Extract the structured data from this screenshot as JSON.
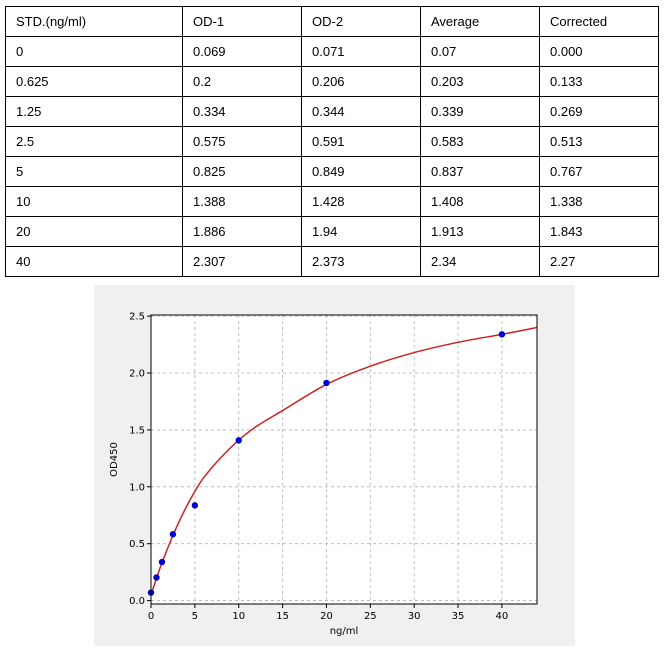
{
  "table": {
    "headers": [
      "STD.(ng/ml)",
      "OD-1",
      "OD-2",
      "Average",
      "Corrected"
    ],
    "rows": [
      [
        "0",
        "0.069",
        "0.071",
        "0.07",
        "0.000"
      ],
      [
        "0.625",
        "0.2",
        "0.206",
        "0.203",
        "0.133"
      ],
      [
        "1.25",
        "0.334",
        "0.344",
        "0.339",
        "0.269"
      ],
      [
        "2.5",
        "0.575",
        "0.591",
        "0.583",
        "0.513"
      ],
      [
        "5",
        "0.825",
        "0.849",
        "0.837",
        "0.767"
      ],
      [
        "10",
        "1.388",
        "1.428",
        "1.408",
        "1.338"
      ],
      [
        "20",
        "1.886",
        "1.94",
        "1.913",
        "1.843"
      ],
      [
        "40",
        "2.307",
        "2.373",
        "2.34",
        "2.27"
      ]
    ]
  },
  "chart_data": {
    "type": "scatter",
    "title": "",
    "xlabel": "ng/ml",
    "ylabel": "OD450",
    "xlim": [
      0,
      44
    ],
    "ylim": [
      -0.03,
      2.51
    ],
    "xticks": [
      0,
      5,
      10,
      15,
      20,
      25,
      30,
      35,
      40
    ],
    "yticks": [
      0.0,
      0.5,
      1.0,
      1.5,
      2.0,
      2.5
    ],
    "xtick_labels": [
      "0",
      "5",
      "10",
      "15",
      "20",
      "25",
      "30",
      "35",
      "40"
    ],
    "ytick_labels": [
      "0.0",
      "0.5",
      "1.0",
      "1.5",
      "2.0",
      "2.5"
    ],
    "grid": true,
    "series": [
      {
        "kind": "points",
        "x": [
          0,
          0.625,
          1.25,
          2.5,
          5,
          10,
          20,
          40
        ],
        "y": [
          0.07,
          0.203,
          0.339,
          0.583,
          0.837,
          1.408,
          1.913,
          2.34
        ],
        "color": "#0000cc"
      },
      {
        "kind": "fit",
        "x": [
          0,
          1,
          2,
          3,
          4,
          5,
          6,
          8,
          10,
          12,
          15,
          20,
          25,
          30,
          35,
          40,
          44
        ],
        "y": [
          0.05,
          0.28,
          0.48,
          0.66,
          0.82,
          0.96,
          1.08,
          1.26,
          1.41,
          1.53,
          1.67,
          1.9,
          2.06,
          2.18,
          2.27,
          2.34,
          2.4
        ],
        "color": "#cc2222"
      }
    ]
  }
}
